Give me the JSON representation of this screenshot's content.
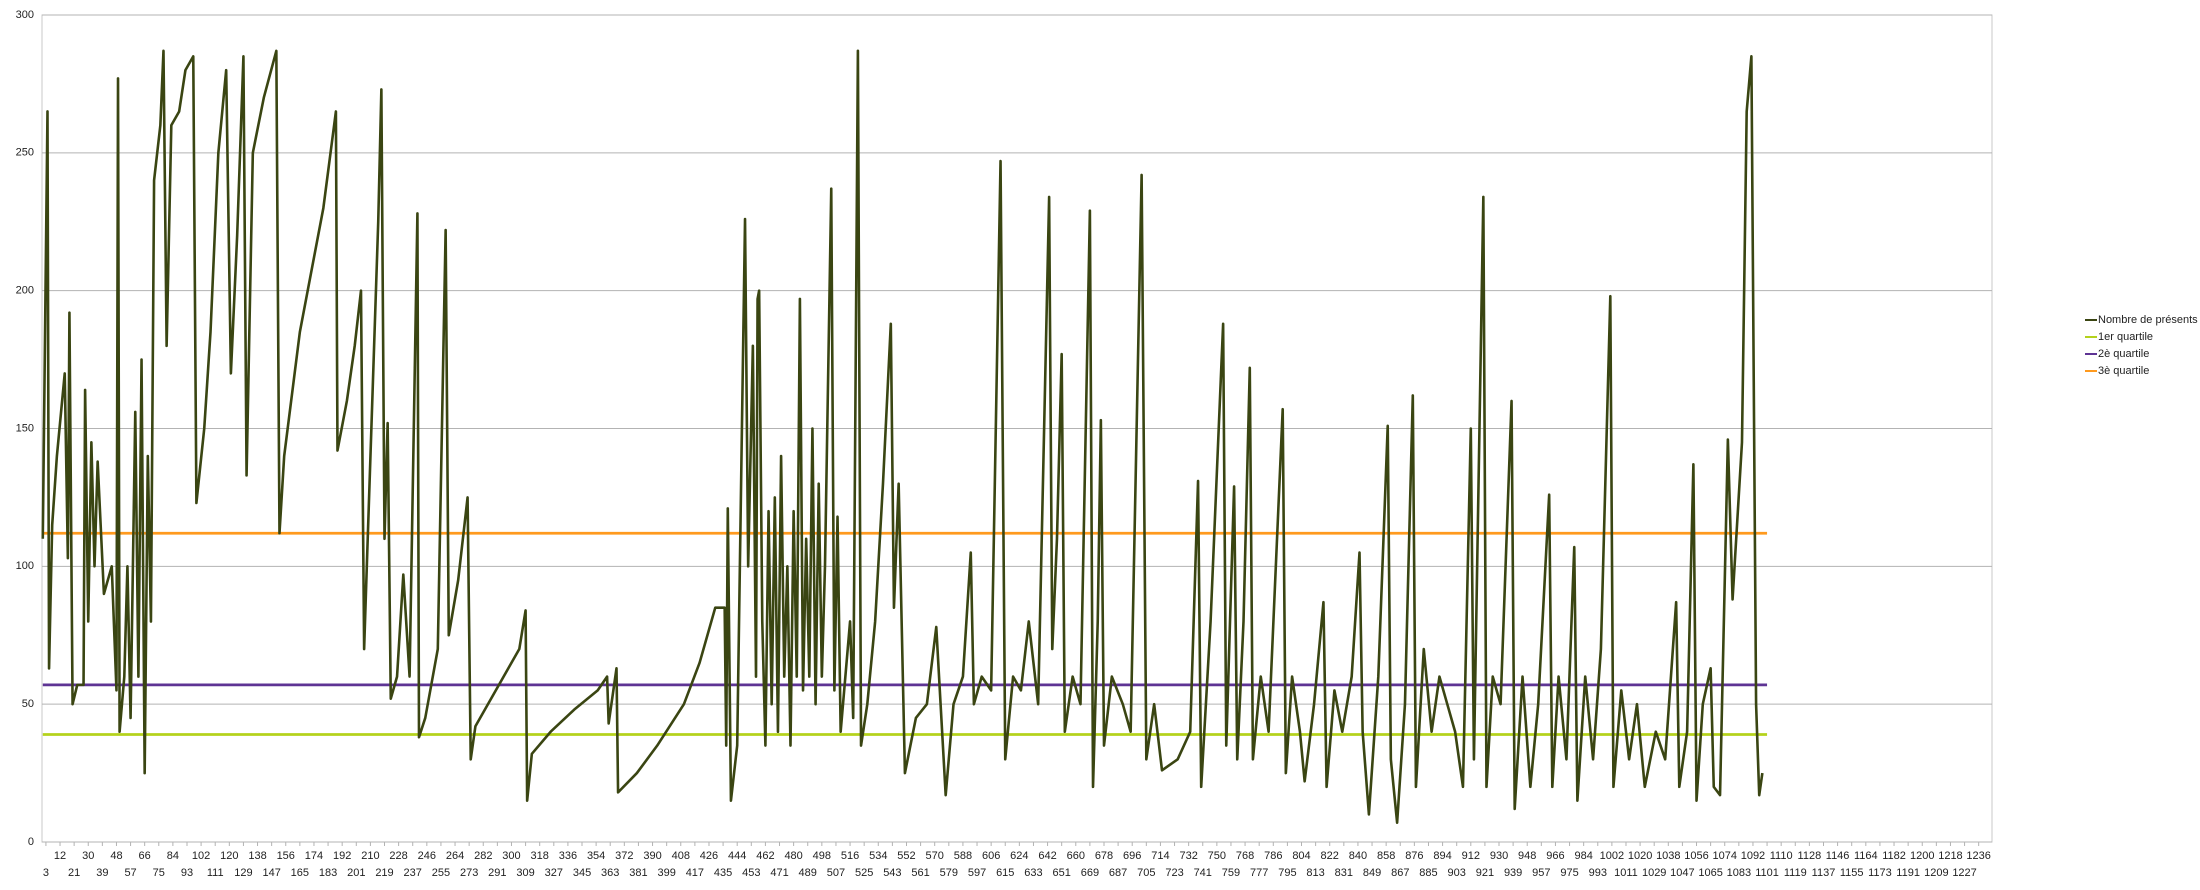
{
  "chart_data": {
    "type": "line",
    "grid": true,
    "legend": "right",
    "xlim": [
      0.5,
      1244.5
    ],
    "ylim": [
      0,
      300
    ],
    "yticks": [
      0,
      50,
      100,
      150,
      200,
      250,
      300
    ],
    "xticks": [
      3,
      12,
      21,
      30,
      39,
      48,
      57,
      66,
      75,
      84,
      93,
      102,
      111,
      120,
      129,
      138,
      147,
      156,
      165,
      174,
      183,
      192,
      201,
      210,
      219,
      228,
      237,
      246,
      255,
      264,
      273,
      282,
      291,
      300,
      309,
      318,
      327,
      336,
      345,
      354,
      363,
      372,
      381,
      390,
      399,
      408,
      417,
      426,
      435,
      444,
      453,
      462,
      471,
      480,
      489,
      498,
      507,
      516,
      525,
      534,
      543,
      552,
      561,
      570,
      579,
      588,
      597,
      606,
      615,
      624,
      633,
      642,
      651,
      660,
      669,
      678,
      687,
      696,
      705,
      714,
      723,
      732,
      741,
      750,
      759,
      768,
      777,
      786,
      795,
      804,
      813,
      822,
      831,
      840,
      849,
      858,
      867,
      876,
      885,
      894,
      903,
      912,
      921,
      930,
      939,
      948,
      957,
      966,
      975,
      984,
      993,
      1002,
      1011,
      1020,
      1029,
      1038,
      1047,
      1056,
      1065,
      1074,
      1083,
      1092,
      1101,
      1110,
      1119,
      1128,
      1137,
      1146,
      1155,
      1164,
      1173,
      1182,
      1191,
      1200,
      1209,
      1218,
      1227,
      1236
    ],
    "series": [
      {
        "name": "Nombre de présents",
        "color": "#3a4512",
        "x": [
          1,
          4,
          5,
          7,
          10,
          15,
          17,
          18,
          20,
          23,
          27,
          28,
          30,
          32,
          34,
          36,
          40,
          45,
          48,
          49,
          50,
          53,
          55,
          57,
          60,
          62,
          64,
          66,
          68,
          70,
          72,
          76,
          78,
          80,
          83,
          88,
          92,
          97,
          99,
          104,
          108,
          113,
          118,
          121,
          125,
          129,
          131,
          135,
          142,
          150,
          152,
          155,
          165,
          180,
          188,
          189,
          195,
          200,
          204,
          206,
          208,
          215,
          217,
          219,
          221,
          223,
          227,
          231,
          235,
          240,
          241,
          245,
          253,
          258,
          260,
          266,
          272,
          274,
          277,
          290,
          305,
          309,
          310,
          313,
          325,
          340,
          355,
          361,
          362,
          367,
          368,
          380,
          393,
          410,
          420,
          430,
          436,
          437,
          438,
          440,
          444,
          449,
          451,
          454,
          456,
          457,
          458,
          460,
          462,
          464,
          466,
          468,
          470,
          472,
          474,
          476,
          478,
          480,
          482,
          484,
          486,
          488,
          490,
          492,
          494,
          496,
          498,
          500,
          504,
          506,
          508,
          510,
          513,
          516,
          518,
          521,
          523,
          527,
          532,
          537,
          542,
          544,
          547,
          551,
          558,
          565,
          571,
          577,
          582,
          588,
          593,
          595,
          600,
          606,
          612,
          615,
          620,
          625,
          630,
          636,
          643,
          645,
          648,
          651,
          653,
          658,
          663,
          669,
          671,
          674,
          676,
          678,
          683,
          690,
          695,
          702,
          705,
          710,
          715,
          725,
          733,
          738,
          740,
          746,
          754,
          756,
          761,
          763,
          767,
          771,
          773,
          778,
          783,
          792,
          794,
          798,
          803,
          806,
          812,
          818,
          820,
          825,
          830,
          836,
          841,
          843,
          847,
          853,
          859,
          861,
          865,
          870,
          875,
          877,
          882,
          887,
          892,
          897,
          902,
          907,
          912,
          914,
          920,
          922,
          926,
          931,
          938,
          940,
          945,
          950,
          955,
          962,
          964,
          968,
          973,
          978,
          980,
          985,
          990,
          995,
          1001,
          1003,
          1008,
          1013,
          1018,
          1023,
          1030,
          1036,
          1043,
          1045,
          1050,
          1054,
          1056,
          1060,
          1065,
          1067,
          1071,
          1076,
          1079,
          1085,
          1088,
          1091,
          1094,
          1096,
          1098
        ],
        "values": [
          110,
          265,
          63,
          115,
          140,
          170,
          103,
          192,
          50,
          57,
          57,
          164,
          80,
          145,
          100,
          138,
          90,
          100,
          55,
          277,
          40,
          60,
          100,
          45,
          156,
          60,
          175,
          25,
          140,
          80,
          240,
          260,
          287,
          180,
          260,
          265,
          280,
          285,
          123,
          150,
          185,
          250,
          280,
          170,
          220,
          285,
          133,
          250,
          270,
          287,
          112,
          140,
          185,
          230,
          265,
          142,
          160,
          180,
          200,
          70,
          105,
          225,
          273,
          110,
          152,
          52,
          60,
          97,
          60,
          228,
          38,
          45,
          70,
          222,
          75,
          95,
          125,
          30,
          42,
          55,
          70,
          84,
          15,
          32,
          40,
          48,
          55,
          60,
          43,
          63,
          18,
          25,
          35,
          50,
          65,
          85,
          85,
          35,
          121,
          15,
          35,
          226,
          100,
          180,
          60,
          197,
          200,
          80,
          35,
          120,
          50,
          125,
          40,
          140,
          60,
          100,
          35,
          120,
          60,
          197,
          55,
          110,
          60,
          150,
          50,
          130,
          60,
          100,
          237,
          55,
          118,
          40,
          60,
          80,
          45,
          287,
          35,
          50,
          80,
          130,
          188,
          85,
          130,
          25,
          45,
          50,
          78,
          17,
          50,
          60,
          105,
          50,
          60,
          55,
          247,
          30,
          60,
          55,
          80,
          50,
          234,
          70,
          110,
          177,
          40,
          60,
          50,
          229,
          20,
          80,
          153,
          35,
          60,
          50,
          40,
          242,
          30,
          50,
          26,
          30,
          40,
          131,
          20,
          80,
          188,
          35,
          129,
          30,
          80,
          172,
          30,
          60,
          40,
          157,
          25,
          60,
          40,
          22,
          50,
          87,
          20,
          55,
          40,
          60,
          105,
          40,
          10,
          60,
          151,
          30,
          7,
          50,
          162,
          20,
          70,
          40,
          60,
          50,
          40,
          20,
          150,
          30,
          234,
          20,
          60,
          50,
          160,
          12,
          60,
          20,
          50,
          126,
          20,
          60,
          30,
          107,
          15,
          60,
          30,
          70,
          198,
          20,
          55,
          30,
          50,
          20,
          40,
          30,
          87,
          20,
          40,
          137,
          15,
          50,
          63,
          20,
          17,
          146,
          88,
          145,
          265,
          285,
          50,
          17,
          25
        ]
      },
      {
        "name": "1er quartile",
        "color": "#b4d21c",
        "x": [
          1,
          1101
        ],
        "values": [
          39,
          39
        ]
      },
      {
        "name": "2è quartile",
        "color": "#5e3494",
        "x": [
          1,
          1101
        ],
        "values": [
          57,
          57
        ]
      },
      {
        "name": "3è quartile",
        "color": "#ff9a1e",
        "x": [
          1,
          1101
        ],
        "values": [
          112,
          112
        ]
      }
    ]
  }
}
